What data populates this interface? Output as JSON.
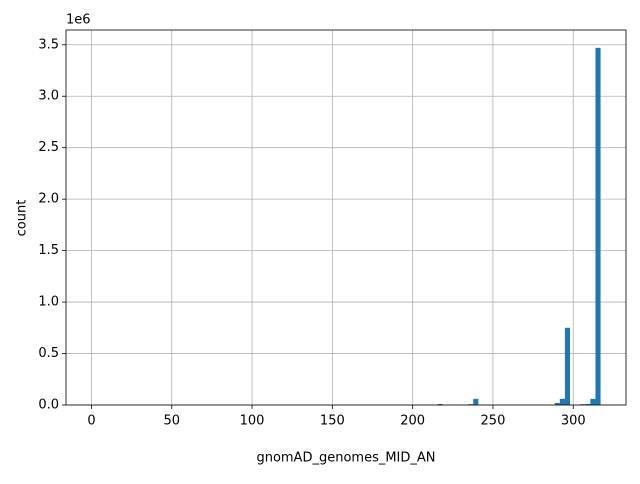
{
  "chart_data": {
    "type": "histogram",
    "xlabel": "gnomAD_genomes_MID_AN",
    "ylabel": "count",
    "y_offset_label": "1e6",
    "color": "#1f77b4",
    "grid": true,
    "bins": [
      0,
      3.17,
      6.34,
      9.51,
      12.68,
      15.85,
      19.02,
      22.19,
      25.36,
      28.53,
      31.7,
      34.87,
      38.04,
      41.21,
      44.38,
      47.55,
      50.72,
      53.89,
      57.06,
      60.23,
      63.4,
      66.57,
      69.74,
      72.91,
      76.08,
      79.25,
      82.42,
      85.59,
      88.76,
      91.93,
      95.1,
      98.27,
      101.44,
      104.61,
      107.78,
      110.95,
      114.12,
      117.29,
      120.46,
      123.63,
      126.8,
      129.97,
      133.14,
      136.31,
      139.48,
      142.65,
      145.82,
      148.99,
      152.16,
      155.33,
      158.5,
      161.67,
      164.84,
      168.01,
      171.18,
      174.35,
      177.52,
      180.69,
      183.86,
      187.03,
      190.2,
      193.37,
      196.54,
      199.71,
      202.88,
      206.05,
      209.22,
      212.39,
      215.56,
      218.73,
      221.9,
      225.07,
      228.24,
      231.41,
      234.58,
      237.75,
      240.92,
      244.09,
      247.26,
      250.43,
      253.6,
      256.77,
      259.94,
      263.11,
      266.28,
      269.45,
      272.62,
      275.79,
      278.96,
      282.13,
      285.3,
      288.47,
      291.64,
      294.81,
      297.98,
      301.15,
      304.32,
      307.49,
      310.66,
      313.83,
      317
    ],
    "values": [
      0,
      0,
      0,
      0,
      0,
      0,
      0,
      0,
      0,
      0,
      0,
      0,
      0,
      0,
      0,
      0,
      0,
      0,
      0,
      0,
      0,
      0,
      0,
      0,
      0,
      0,
      0,
      0,
      0,
      0,
      0,
      0,
      0,
      0,
      0,
      0,
      0,
      0,
      0,
      0,
      0,
      0,
      0,
      0,
      0,
      0,
      0,
      0,
      0,
      0,
      0,
      0,
      0,
      0,
      0,
      0,
      0,
      0,
      0,
      0,
      0,
      0,
      0,
      0,
      0,
      0,
      0,
      0,
      10000,
      0,
      0,
      0,
      0,
      0,
      8000,
      60000,
      0,
      0,
      0,
      0,
      0,
      0,
      0,
      0,
      0,
      0,
      0,
      0,
      0,
      0,
      0,
      20000,
      60000,
      750000,
      0,
      0,
      8000,
      10000,
      60000,
      3470000
    ],
    "xlim": [
      -15.85,
      332.85
    ],
    "xticks": [
      0,
      50,
      100,
      150,
      200,
      250,
      300
    ],
    "ylim": [
      0,
      3643500
    ],
    "yticks": [
      {
        "value": 0,
        "label": "0.0"
      },
      {
        "value": 500000,
        "label": "0.5"
      },
      {
        "value": 1000000,
        "label": "1.0"
      },
      {
        "value": 1500000,
        "label": "1.5"
      },
      {
        "value": 2000000,
        "label": "2.0"
      },
      {
        "value": 2500000,
        "label": "2.5"
      },
      {
        "value": 3000000,
        "label": "3.0"
      },
      {
        "value": 3500000,
        "label": "3.5"
      }
    ]
  }
}
